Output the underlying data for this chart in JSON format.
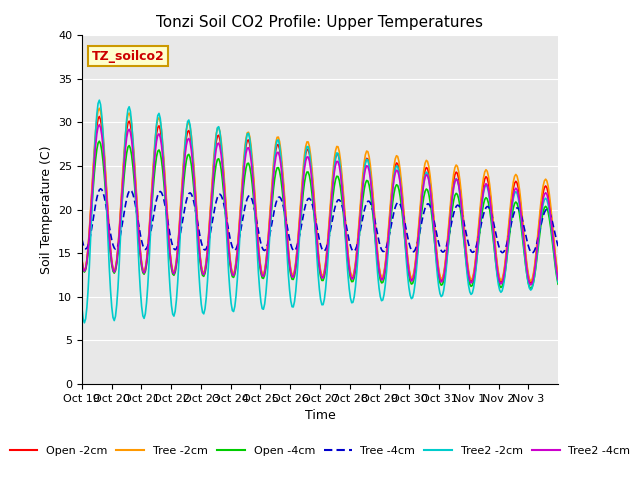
{
  "title": "Tonzi Soil CO2 Profile: Upper Temperatures",
  "xlabel": "Time",
  "ylabel": "Soil Temperature (C)",
  "ylim": [
    0,
    40
  ],
  "yticks": [
    0,
    5,
    10,
    15,
    20,
    25,
    30,
    35,
    40
  ],
  "bg_color": "#e8e8e8",
  "series": [
    {
      "label": "Open -2cm",
      "color": "#ff0000",
      "lw": 1.2
    },
    {
      "label": "Tree -2cm",
      "color": "#ff9900",
      "lw": 1.2
    },
    {
      "label": "Open -4cm",
      "color": "#00cc00",
      "lw": 1.2
    },
    {
      "label": "Tree -4cm",
      "color": "#0000cc",
      "lw": 1.2,
      "dashes": [
        4,
        2
      ]
    },
    {
      "label": "Tree2 -2cm",
      "color": "#00cccc",
      "lw": 1.2
    },
    {
      "label": "Tree2 -4cm",
      "color": "#cc00cc",
      "lw": 1.2
    }
  ],
  "xtick_labels": [
    "Oct 19",
    "Oct 20",
    "Oct 21",
    "Oct 22",
    "Oct 23",
    "Oct 24",
    "Oct 25",
    "Oct 26",
    "Oct 27",
    "Oct 28",
    "Oct 29",
    "Oct 30",
    "Oct 31",
    "Nov 1",
    "Nov 2",
    "Nov 3"
  ],
  "annotation_text": "TZ_soilco2",
  "annotation_bg": "#ffffcc",
  "annotation_border": "#cc9900"
}
